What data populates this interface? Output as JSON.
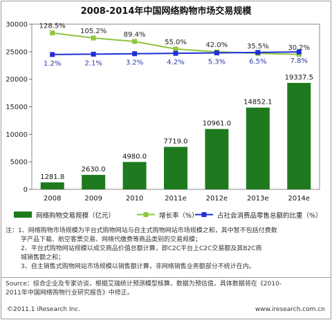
{
  "chart_data": {
    "type": "bar",
    "title": "2008-2014年中国网络购物市场交易规模",
    "categories": [
      "2008",
      "2009",
      "2010",
      "2011e",
      "2012e",
      "2013e",
      "2014e"
    ],
    "series": [
      {
        "name": "网络购物交易规模（亿元）",
        "type": "bar",
        "values": [
          1281.8,
          2630.0,
          4980.0,
          7719.0,
          10961.0,
          14852.1,
          19337.5
        ],
        "labels": [
          "1281.8",
          "2630.0",
          "4980.0",
          "7719.0",
          "10961.0",
          "14852.1",
          "19337.5"
        ]
      },
      {
        "name": "增长率（%）",
        "type": "line",
        "values": [
          128.5,
          105.2,
          89.4,
          55.0,
          42.0,
          35.5,
          30.2
        ],
        "labels": [
          "128.5%",
          "105.2%",
          "89.4%",
          "55.0%",
          "42.0%",
          "35.5%",
          "30.2%"
        ]
      },
      {
        "name": "占社会消费品零售总额的比重（%）",
        "type": "line",
        "values": [
          1.2,
          2.1,
          3.2,
          4.2,
          5.3,
          6.5,
          7.8
        ],
        "labels": [
          "1.2%",
          "2.1%",
          "3.2%",
          "4.2%",
          "5.3%",
          "6.5%",
          "7.8%"
        ]
      }
    ],
    "yticks": [
      "0",
      "5000",
      "10000",
      "15000",
      "20000",
      "25000",
      "30000"
    ],
    "ylim": [
      0,
      30000
    ],
    "colors": {
      "bar": "#1f7a1f",
      "growth": "#8ec63f",
      "share": "#1f2ed6",
      "label_share": "#2a3aa8"
    },
    "legend_position": "bottom"
  },
  "notes": {
    "line1": "注：1、网络购物市场规模为平台式购物网站与自主式购物网站市场规模之和，其中暂不包括付费数",
    "line2": "字产品下载、航空客票交易、网络代缴费等商品类别的交易规模；",
    "line3": "2、平台式购物网站规模以成交商品价值总额计算，即C2C平台上C2C交易额及其B2C商",
    "line4": "城销售额之和；",
    "line5": "3、自主销售式购物网站市场规模以销售额计算，非网络销售业务额部分不统计在内。"
  },
  "source": {
    "line1": "Source：综合企业及专家访谈，根据艾瑞统计预测模型核算，数据为预估值，具体数据将在《2010-",
    "line2": "2011年中国网络购物行业研究报告》中修正。"
  },
  "footer": {
    "copyright": "©2011.1 iResearch Inc.",
    "site": "www.iresearch.com.cn"
  }
}
